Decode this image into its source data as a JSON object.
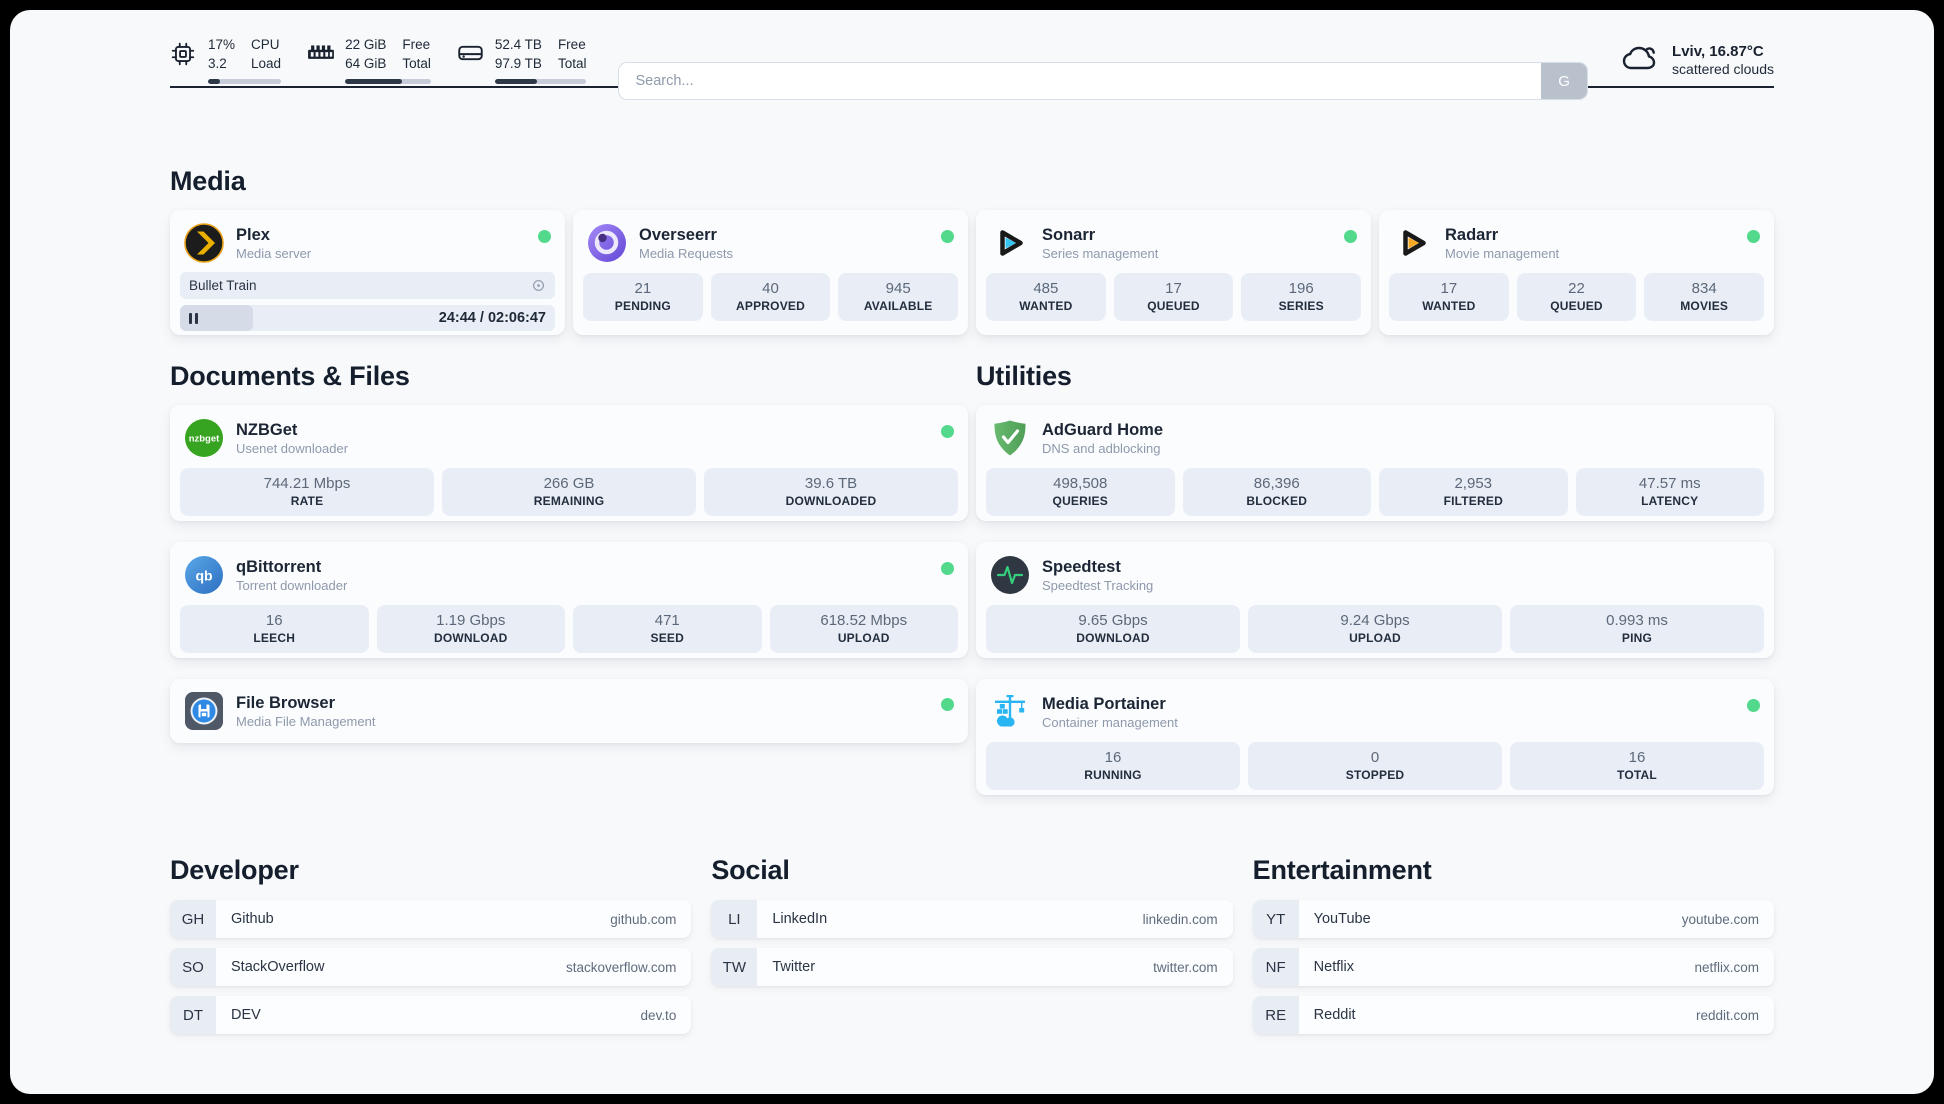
{
  "header": {
    "stats": [
      {
        "name": "cpu",
        "value_top": "17%",
        "value_bottom": "3.2",
        "label_top": "CPU",
        "label_bottom": "Load",
        "progress_pct": 17
      },
      {
        "name": "memory",
        "value_top": "22 GiB",
        "value_bottom": "64 GiB",
        "label_top": "Free",
        "label_bottom": "Total",
        "progress_pct": 66
      },
      {
        "name": "disk",
        "value_top": "52.4 TB",
        "value_bottom": "97.9 TB",
        "label_top": "Free",
        "label_bottom": "Total",
        "progress_pct": 46
      }
    ],
    "search": {
      "placeholder": "Search...",
      "button_label": "G"
    },
    "weather": {
      "location": "Lviv, 16.87°C",
      "condition": "scattered clouds"
    }
  },
  "sections": {
    "media": {
      "title": "Media"
    },
    "documents": {
      "title": "Documents & Files"
    },
    "utilities": {
      "title": "Utilities"
    },
    "developer": {
      "title": "Developer"
    },
    "social": {
      "title": "Social"
    },
    "entertainment": {
      "title": "Entertainment"
    }
  },
  "apps": {
    "plex": {
      "name": "Plex",
      "subtitle": "Media server",
      "online": true,
      "player": {
        "title": "Bullet Train",
        "time_display": "24:44 / 02:06:47",
        "progress_pct": 19.5
      }
    },
    "overseerr": {
      "name": "Overseerr",
      "subtitle": "Media Requests",
      "online": true,
      "stats": [
        {
          "value": "21",
          "label": "PENDING"
        },
        {
          "value": "40",
          "label": "APPROVED"
        },
        {
          "value": "945",
          "label": "AVAILABLE"
        }
      ]
    },
    "sonarr": {
      "name": "Sonarr",
      "subtitle": "Series management",
      "online": true,
      "stats": [
        {
          "value": "485",
          "label": "WANTED"
        },
        {
          "value": "17",
          "label": "QUEUED"
        },
        {
          "value": "196",
          "label": "SERIES"
        }
      ]
    },
    "radarr": {
      "name": "Radarr",
      "subtitle": "Movie management",
      "online": true,
      "stats": [
        {
          "value": "17",
          "label": "WANTED"
        },
        {
          "value": "22",
          "label": "QUEUED"
        },
        {
          "value": "834",
          "label": "MOVIES"
        }
      ]
    },
    "nzbget": {
      "name": "NZBGet",
      "subtitle": "Usenet downloader",
      "online": true,
      "stats": [
        {
          "value": "744.21 Mbps",
          "label": "RATE"
        },
        {
          "value": "266 GB",
          "label": "REMAINING"
        },
        {
          "value": "39.6 TB",
          "label": "DOWNLOADED"
        }
      ]
    },
    "qbittorrent": {
      "name": "qBittorrent",
      "subtitle": "Torrent downloader",
      "online": true,
      "stats": [
        {
          "value": "16",
          "label": "LEECH"
        },
        {
          "value": "1.19 Gbps",
          "label": "DOWNLOAD"
        },
        {
          "value": "471",
          "label": "SEED"
        },
        {
          "value": "618.52 Mbps",
          "label": "UPLOAD"
        }
      ]
    },
    "filebrowser": {
      "name": "File Browser",
      "subtitle": "Media File Management",
      "online": true
    },
    "adguard": {
      "name": "AdGuard Home",
      "subtitle": "DNS and adblocking",
      "stats": [
        {
          "value": "498,508",
          "label": "QUERIES"
        },
        {
          "value": "86,396",
          "label": "BLOCKED"
        },
        {
          "value": "2,953",
          "label": "FILTERED"
        },
        {
          "value": "47.57 ms",
          "label": "LATENCY"
        }
      ]
    },
    "speedtest": {
      "name": "Speedtest",
      "subtitle": "Speedtest Tracking",
      "stats": [
        {
          "value": "9.65 Gbps",
          "label": "DOWNLOAD"
        },
        {
          "value": "9.24 Gbps",
          "label": "UPLOAD"
        },
        {
          "value": "0.993 ms",
          "label": "PING"
        }
      ]
    },
    "portainer": {
      "name": "Media Portainer",
      "subtitle": "Container management",
      "online": true,
      "stats": [
        {
          "value": "16",
          "label": "RUNNING"
        },
        {
          "value": "0",
          "label": "STOPPED"
        },
        {
          "value": "16",
          "label": "TOTAL"
        }
      ]
    }
  },
  "links": {
    "developer": [
      {
        "abbr": "GH",
        "name": "Github",
        "url": "github.com"
      },
      {
        "abbr": "SO",
        "name": "StackOverflow",
        "url": "stackoverflow.com"
      },
      {
        "abbr": "DT",
        "name": "DEV",
        "url": "dev.to"
      }
    ],
    "social": [
      {
        "abbr": "LI",
        "name": "LinkedIn",
        "url": "linkedin.com"
      },
      {
        "abbr": "TW",
        "name": "Twitter",
        "url": "twitter.com"
      }
    ],
    "entertainment": [
      {
        "abbr": "YT",
        "name": "YouTube",
        "url": "youtube.com"
      },
      {
        "abbr": "NF",
        "name": "Netflix",
        "url": "netflix.com"
      },
      {
        "abbr": "RE",
        "name": "Reddit",
        "url": "reddit.com"
      }
    ]
  },
  "colors": {
    "status_online": "#52d98b",
    "page_bg": "#f7f9fb",
    "tile_bg": "#e9eef6",
    "text_dark": "#1b2534",
    "text_muted": "#8e99ab",
    "progress_fill": "#2e3947"
  }
}
